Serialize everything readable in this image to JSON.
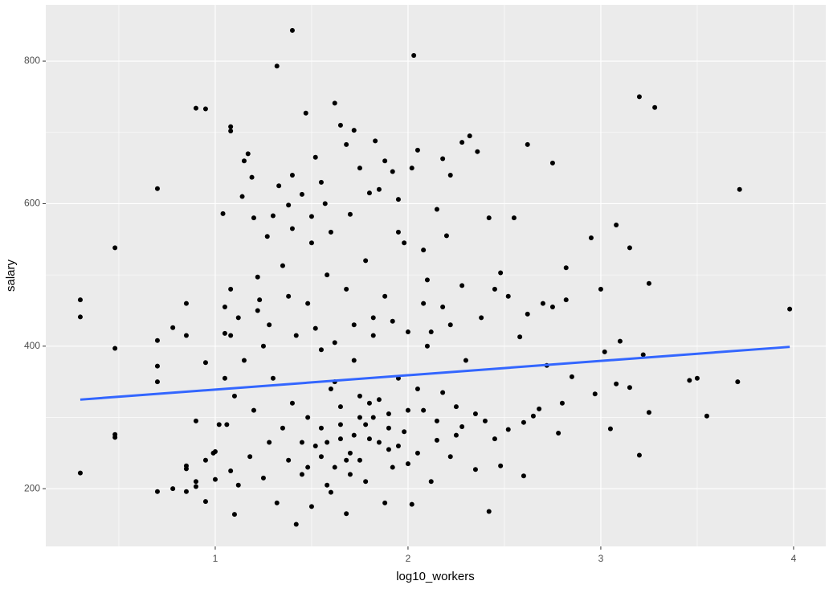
{
  "chart_data": {
    "type": "scatter",
    "x_label": "log10_workers",
    "y_label": "salary",
    "color": "#000000",
    "x": [
      0.3,
      0.3,
      0.3,
      0.48,
      0.48,
      0.48,
      0.48,
      0.7,
      0.7,
      0.7,
      0.7,
      0.7,
      0.78,
      0.78,
      0.85,
      0.85,
      0.85,
      0.85,
      0.85,
      0.9,
      0.9,
      0.9,
      0.9,
      0.95,
      0.95,
      0.95,
      0.95,
      0.99,
      1.0,
      1.04,
      1.05,
      1.05,
      1.06,
      1.08,
      1.08,
      1.08,
      1.08,
      1.08,
      1.1,
      1.12,
      1.14,
      1.15,
      1.17,
      1.19,
      1.2,
      1.22,
      1.23,
      1.25,
      1.27,
      1.3,
      1.32,
      1.33,
      1.35,
      1.38,
      1.4,
      1.4,
      1.45,
      1.47,
      1.5,
      1.52,
      1.55,
      1.57,
      1.62,
      1.65,
      1.68,
      1.72,
      1.75,
      1.8,
      1.83,
      1.88,
      1.92,
      1.95,
      2.02,
      2.03,
      2.05,
      2.1,
      2.15,
      2.18,
      2.22,
      2.28,
      2.32,
      2.36,
      2.42,
      2.48,
      2.55,
      2.62,
      2.75,
      2.82,
      2.95,
      3.08,
      3.2,
      3.28,
      3.72,
      3.98,
      3.15,
      3.25,
      3.0,
      2.97,
      3.02,
      3.08,
      3.1,
      3.15,
      3.2,
      3.22,
      3.25,
      3.05,
      3.5,
      3.55,
      3.46,
      3.71,
      2.8,
      2.85,
      2.78,
      2.72,
      2.68,
      2.65,
      2.6,
      2.6,
      2.58,
      2.52,
      2.48,
      2.45,
      2.42,
      2.4,
      2.38,
      2.35,
      2.3,
      2.28,
      2.25,
      2.22,
      2.18,
      2.15,
      2.12,
      2.1,
      2.08,
      2.05,
      2.02,
      2.0,
      1.98,
      1.95,
      1.92,
      1.9,
      1.88,
      1.85,
      1.82,
      1.8,
      1.78,
      1.75,
      1.72,
      1.7,
      1.68,
      1.65,
      1.62,
      1.6,
      1.58,
      1.55,
      1.52,
      1.5,
      1.48,
      1.45,
      1.42,
      1.4,
      1.38,
      1.35,
      1.32,
      1.3,
      1.28,
      1.25,
      1.22,
      1.2,
      1.18,
      1.15,
      1.12,
      1.1,
      1.05,
      1.02,
      1.0,
      1.62,
      1.72,
      1.85,
      1.95,
      2.05,
      2.15,
      2.25,
      2.35,
      1.55,
      1.45,
      1.65,
      1.75,
      1.82,
      1.9,
      2.0,
      1.58,
      1.68,
      1.78,
      1.88,
      1.98,
      2.08,
      2.18,
      2.28,
      1.48,
      1.38,
      1.28,
      2.45,
      2.52,
      2.62,
      2.7,
      2.75,
      2.82,
      1.42,
      1.52,
      1.62,
      1.72,
      1.82,
      1.92,
      2.12,
      2.22,
      1.6,
      1.7,
      1.85,
      1.95,
      2.08,
      2.2,
      1.5,
      1.4,
      1.55,
      1.65,
      1.75,
      1.7,
      1.6,
      1.8,
      1.9,
      2.0,
      1.48,
      1.58,
      1.68,
      1.78
    ],
    "values": [
      465,
      441,
      222,
      538,
      397,
      276,
      272,
      621,
      408,
      372,
      350,
      196,
      426,
      200,
      460,
      415,
      232,
      228,
      196,
      734,
      295,
      210,
      203,
      733,
      377,
      240,
      182,
      250,
      213,
      586,
      455,
      418,
      290,
      708,
      702,
      480,
      415,
      225,
      164,
      440,
      610,
      660,
      670,
      637,
      580,
      497,
      465,
      400,
      554,
      583,
      793,
      625,
      513,
      598,
      640,
      843,
      613,
      727,
      582,
      665,
      630,
      600,
      741,
      710,
      683,
      703,
      650,
      615,
      688,
      660,
      645,
      606,
      650,
      808,
      675,
      493,
      592,
      663,
      640,
      686,
      695,
      673,
      580,
      503,
      580,
      683,
      657,
      510,
      552,
      570,
      750,
      735,
      620,
      452,
      538,
      488,
      480,
      333,
      392,
      347,
      407,
      342,
      247,
      388,
      307,
      284,
      355,
      302,
      352,
      350,
      320,
      357,
      278,
      373,
      312,
      302,
      293,
      218,
      413,
      283,
      232,
      270,
      168,
      295,
      440,
      227,
      380,
      287,
      315,
      245,
      335,
      268,
      210,
      400,
      310,
      250,
      178,
      420,
      280,
      355,
      230,
      305,
      180,
      265,
      440,
      320,
      210,
      300,
      380,
      250,
      165,
      290,
      230,
      340,
      205,
      395,
      260,
      175,
      300,
      220,
      150,
      320,
      240,
      285,
      180,
      355,
      265,
      215,
      450,
      310,
      245,
      380,
      205,
      330,
      355,
      290,
      252,
      350,
      275,
      325,
      260,
      340,
      295,
      275,
      305,
      245,
      265,
      270,
      240,
      300,
      285,
      310,
      500,
      480,
      520,
      470,
      545,
      460,
      455,
      485,
      460,
      470,
      430,
      480,
      470,
      445,
      460,
      455,
      465,
      415,
      425,
      405,
      430,
      415,
      435,
      420,
      430,
      560,
      585,
      620,
      560,
      535,
      555,
      545,
      565,
      285,
      315,
      330,
      220,
      195,
      270,
      255,
      235,
      230,
      265,
      240,
      290
    ],
    "trend_line": {
      "color": "#3366ff",
      "x": [
        0.3,
        3.98
      ],
      "values": [
        325,
        399
      ]
    },
    "xlim": [
      0.121,
      4.167
    ],
    "ylim": [
      119,
      879
    ],
    "xticks": [
      1,
      2,
      3,
      4
    ],
    "yticks": [
      200,
      400,
      600,
      800
    ],
    "minor_xticks": [
      0.5,
      1.5,
      2.5,
      3.5
    ],
    "minor_yticks": [
      300,
      500,
      700
    ],
    "grid": true,
    "panel_color": "#ebebeb",
    "grid_color": "#ffffff"
  }
}
